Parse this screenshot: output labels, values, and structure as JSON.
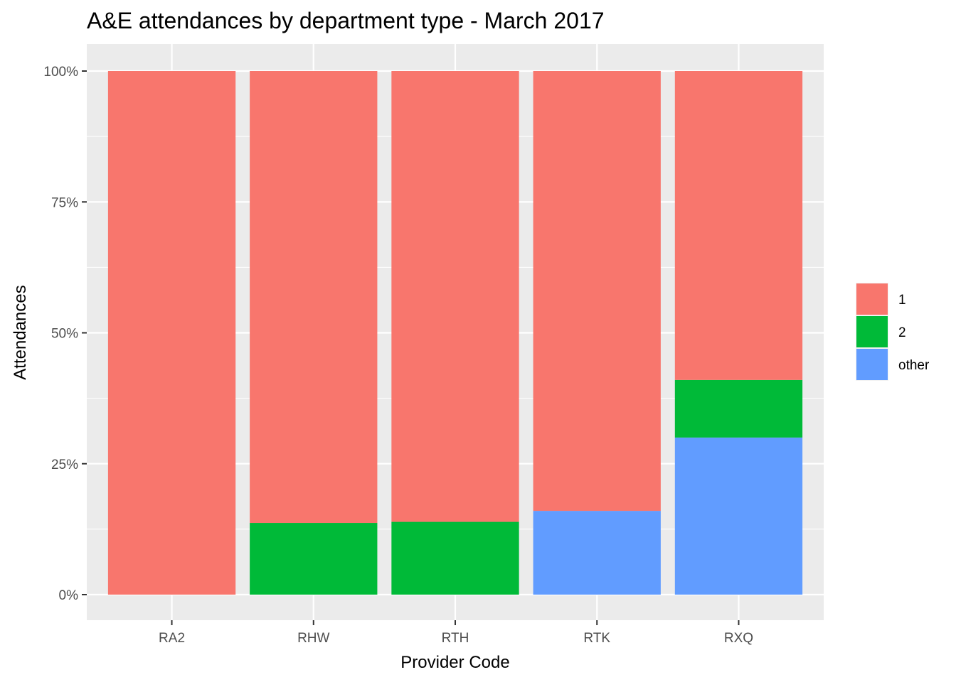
{
  "chart_data": {
    "type": "bar",
    "stacked": true,
    "normalized": true,
    "title": "A&E attendances by department type - March 2017",
    "xlabel": "Provider Code",
    "ylabel": "Attendances",
    "categories": [
      "RA2",
      "RHW",
      "RTH",
      "RTK",
      "RXQ"
    ],
    "y_ticks": [
      "0%",
      "25%",
      "50%",
      "75%",
      "100%"
    ],
    "ylim": [
      0,
      1
    ],
    "series": [
      {
        "name": "other",
        "values": [
          0.0,
          0.0,
          0.0,
          0.16,
          0.3
        ],
        "color": "#619CFF"
      },
      {
        "name": "2",
        "values": [
          0.0,
          0.137,
          0.139,
          0.0,
          0.11
        ],
        "color": "#00BA38"
      },
      {
        "name": "1",
        "values": [
          1.0,
          0.863,
          0.861,
          0.84,
          0.59
        ],
        "color": "#F8766D"
      }
    ],
    "legend": {
      "position": "right",
      "items": [
        {
          "label": "1",
          "color": "#F8766D"
        },
        {
          "label": "2",
          "color": "#00BA38"
        },
        {
          "label": "other",
          "color": "#619CFF"
        }
      ]
    },
    "grid": true,
    "panel_background": "#EBEBEB",
    "grid_color": "#FFFFFF"
  }
}
